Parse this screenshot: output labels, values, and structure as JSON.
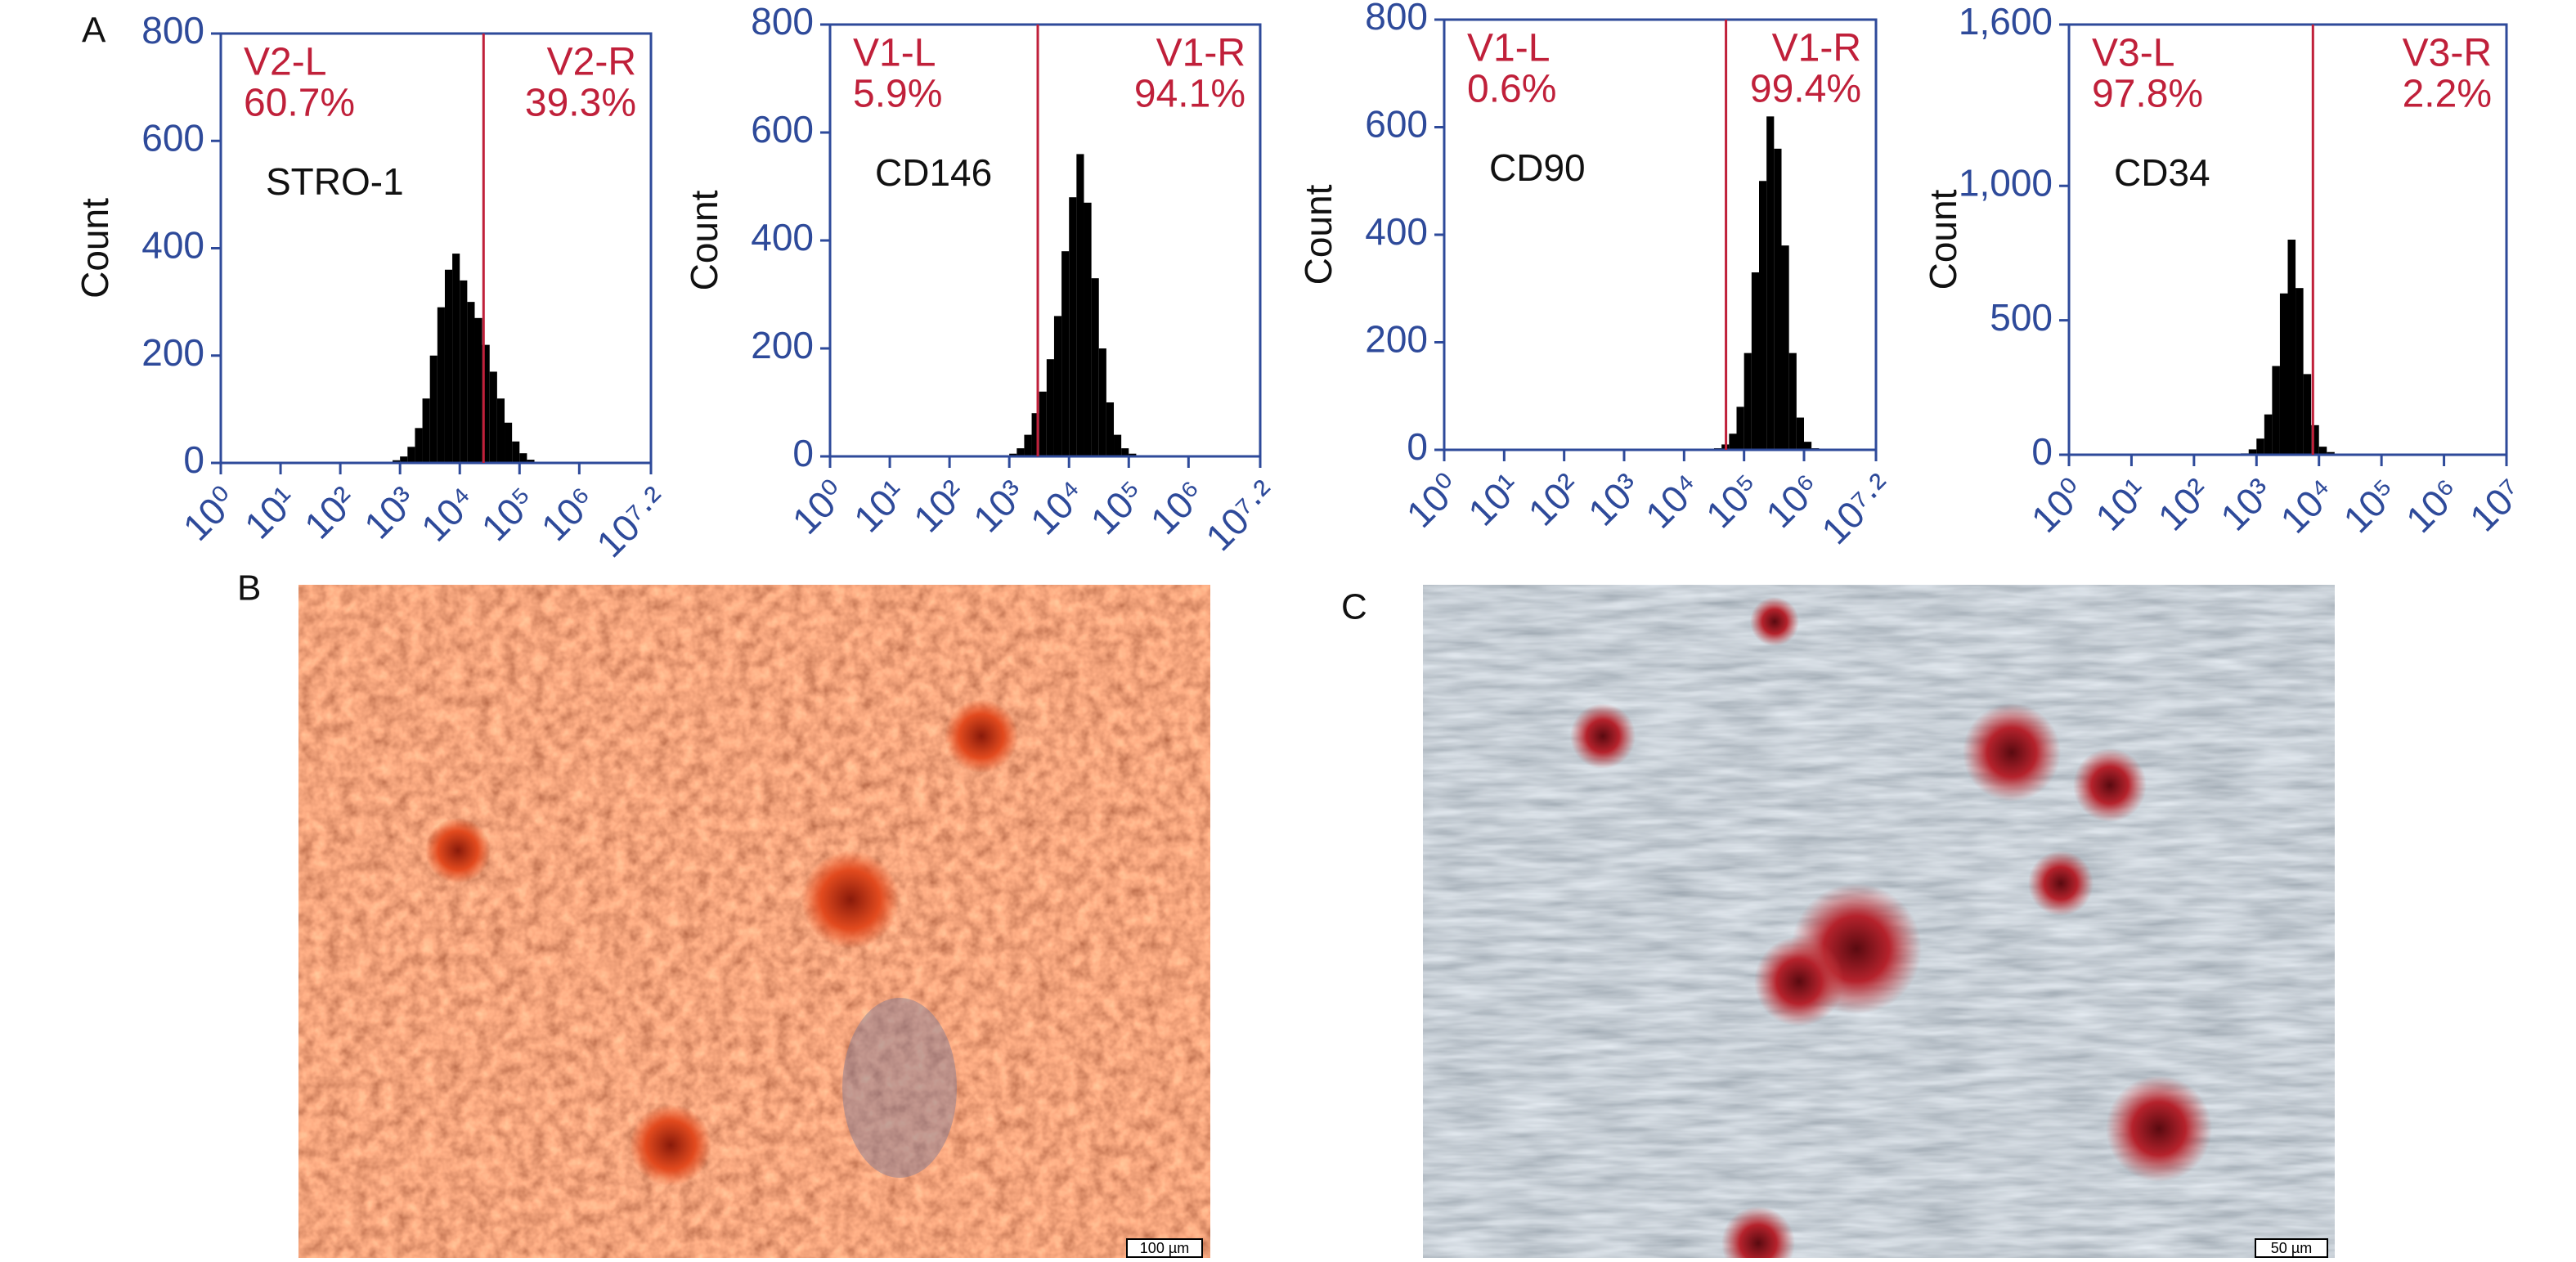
{
  "panel_labels": [
    "A",
    "B",
    "C"
  ],
  "chart_data": [
    {
      "type": "histogram",
      "label": "STRO-1",
      "ylabel": "Count",
      "xscale": "log",
      "xlim": [
        1,
        15848932
      ],
      "ylim": [
        0,
        800
      ],
      "xticks": [
        {
          "value": 1,
          "label": "10⁰"
        },
        {
          "value": 10,
          "label": "10¹"
        },
        {
          "value": 100,
          "label": "10²"
        },
        {
          "value": 1000,
          "label": "10³"
        },
        {
          "value": 10000,
          "label": "10⁴"
        },
        {
          "value": 100000,
          "label": "10⁵"
        },
        {
          "value": 1000000,
          "label": "10⁶"
        },
        {
          "value": 15848932,
          "label": "10⁷·²"
        }
      ],
      "yticks": [
        0,
        200,
        400,
        600,
        800
      ],
      "bins": [
        562,
        750,
        1000,
        1334,
        1778,
        2371,
        3162,
        4217,
        5623,
        7499,
        10000,
        13335,
        17783,
        23714,
        31623,
        42170,
        56234,
        74989,
        100000,
        133352,
        177828,
        237137
      ],
      "counts": [
        2,
        5,
        12,
        30,
        65,
        120,
        200,
        290,
        360,
        390,
        340,
        300,
        270,
        220,
        170,
        120,
        75,
        40,
        18,
        6,
        2
      ],
      "color": "#000000",
      "gates": {
        "x": 25000,
        "names": [
          "V2-L",
          "V2-R"
        ],
        "values": [
          60.7,
          39.3
        ],
        "value_labels": [
          "60.7%",
          "39.3%"
        ]
      }
    },
    {
      "type": "histogram",
      "label": "CD146",
      "ylabel": "Count",
      "xscale": "log",
      "xlim": [
        1,
        15848932
      ],
      "ylim": [
        0,
        800
      ],
      "xticks": [
        {
          "value": 1,
          "label": "10⁰"
        },
        {
          "value": 10,
          "label": "10¹"
        },
        {
          "value": 100,
          "label": "10²"
        },
        {
          "value": 1000,
          "label": "10³"
        },
        {
          "value": 10000,
          "label": "10⁴"
        },
        {
          "value": 100000,
          "label": "10⁵"
        },
        {
          "value": 1000000,
          "label": "10⁶"
        },
        {
          "value": 15848932,
          "label": "10⁷·²"
        }
      ],
      "yticks": [
        0,
        200,
        400,
        600,
        800
      ],
      "bins": [
        1000,
        1334,
        1778,
        2371,
        3162,
        4217,
        5623,
        7499,
        10000,
        13335,
        17783,
        23714,
        31623,
        42170,
        56234,
        74989,
        100000,
        133352,
        177828
      ],
      "counts": [
        5,
        15,
        40,
        80,
        120,
        180,
        260,
        380,
        480,
        560,
        470,
        330,
        200,
        100,
        40,
        15,
        5,
        2
      ],
      "color": "#000000",
      "gates": {
        "x": 3000,
        "names": [
          "V1-L",
          "V1-R"
        ],
        "values": [
          5.9,
          94.1
        ],
        "value_labels": [
          "5.9%",
          "94.1%"
        ]
      }
    },
    {
      "type": "histogram",
      "label": "CD90",
      "ylabel": "Count",
      "xscale": "log",
      "xlim": [
        1,
        15848932
      ],
      "ylim": [
        0,
        800
      ],
      "xticks": [
        {
          "value": 1,
          "label": "10⁰"
        },
        {
          "value": 10,
          "label": "10¹"
        },
        {
          "value": 100,
          "label": "10²"
        },
        {
          "value": 1000,
          "label": "10³"
        },
        {
          "value": 10000,
          "label": "10⁴"
        },
        {
          "value": 100000,
          "label": "10⁵"
        },
        {
          "value": 1000000,
          "label": "10⁶"
        },
        {
          "value": 15848932,
          "label": "10⁷·²"
        }
      ],
      "yticks": [
        0,
        200,
        400,
        600,
        800
      ],
      "bins": [
        31623,
        42170,
        56234,
        74989,
        100000,
        133352,
        177828,
        237137,
        316228,
        421697,
        562341,
        749894,
        1000000,
        1333521,
        1778279
      ],
      "counts": [
        3,
        10,
        30,
        80,
        180,
        330,
        500,
        620,
        560,
        380,
        180,
        60,
        15,
        3
      ],
      "color": "#000000",
      "gates": {
        "x": 50000,
        "names": [
          "V1-L",
          "V1-R"
        ],
        "values": [
          0.6,
          99.4
        ],
        "value_labels": [
          "0.6%",
          "99.4%"
        ]
      }
    },
    {
      "type": "histogram",
      "label": "CD34",
      "ylabel": "Count",
      "xscale": "log",
      "xlim": [
        1,
        10000000
      ],
      "ylim": [
        0,
        1600
      ],
      "xticks": [
        {
          "value": 1,
          "label": "10⁰"
        },
        {
          "value": 10,
          "label": "10¹"
        },
        {
          "value": 100,
          "label": "10²"
        },
        {
          "value": 1000,
          "label": "10³"
        },
        {
          "value": 10000,
          "label": "10⁴"
        },
        {
          "value": 100000,
          "label": "10⁵"
        },
        {
          "value": 1000000,
          "label": "10⁶"
        },
        {
          "value": 10000000,
          "label": "10⁷"
        }
      ],
      "yticks": [
        0,
        500,
        {
          "value": 1000,
          "label": "1,000"
        },
        {
          "value": 1600,
          "label": "1,600"
        }
      ],
      "bins": [
        562,
        750,
        1000,
        1334,
        1778,
        2371,
        3162,
        4217,
        5623,
        7499,
        10000,
        13335,
        17783,
        23714
      ],
      "counts": [
        5,
        20,
        60,
        150,
        330,
        600,
        800,
        620,
        300,
        110,
        30,
        10,
        3
      ],
      "color": "#000000",
      "gates": {
        "x": 8000,
        "names": [
          "V3-L",
          "V3-R"
        ],
        "values": [
          97.8,
          2.2
        ],
        "value_labels": [
          "97.8%",
          "2.2%"
        ]
      }
    }
  ],
  "images": [
    {
      "scale_bar": "100 µm"
    },
    {
      "scale_bar": "50 µm"
    }
  ]
}
